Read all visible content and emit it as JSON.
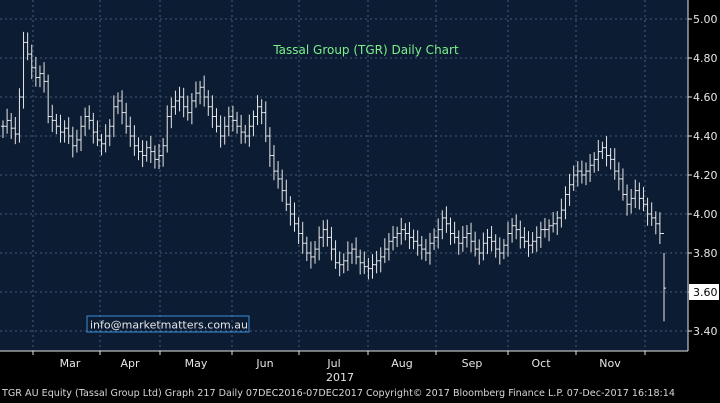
{
  "colors": {
    "background": "#000000",
    "plot_background": "#0b1c33",
    "grid": "#5a6e8a",
    "price_bars": "#e8e8e8",
    "title_text": "#7cf08a",
    "axis_text": "#e6e6e6",
    "last_price_box": "#ffffff",
    "watermark_border": "#3a8fd8"
  },
  "chart_data": {
    "type": "ohlc-bar",
    "title": "Tassal Group (TGR) Daily Chart",
    "watermark": "info@marketmatters.com.au",
    "y_ticks": [
      "5.00",
      "4.80",
      "4.60",
      "4.40",
      "4.20",
      "4.00",
      "3.80",
      "3.60",
      "3.40"
    ],
    "ylim": [
      3.34,
      5.04
    ],
    "x_ticks": [
      "Mar",
      "Apr",
      "May",
      "Jun",
      "Jul",
      "Aug",
      "Sep",
      "Oct",
      "Nov"
    ],
    "x_year_label": "2017",
    "last_price": "3.60",
    "grid": true,
    "series": [
      {
        "values": [
          4.45,
          4.48,
          4.44,
          4.41,
          4.6,
          4.88,
          4.82,
          4.75,
          4.7,
          4.72,
          4.68,
          4.5,
          4.48,
          4.45,
          4.42,
          4.44,
          4.4,
          4.35,
          4.38,
          4.45,
          4.5,
          4.48,
          4.42,
          4.38,
          4.36,
          4.4,
          4.45,
          4.55,
          4.58,
          4.52,
          4.45,
          4.4,
          4.35,
          4.32,
          4.3,
          4.34,
          4.32,
          4.28,
          4.3,
          4.35,
          4.5,
          4.55,
          4.58,
          4.6,
          4.55,
          4.52,
          4.58,
          4.62,
          4.65,
          4.6,
          4.55,
          4.5,
          4.45,
          4.4,
          4.45,
          4.5,
          4.48,
          4.45,
          4.42,
          4.4,
          4.45,
          4.5,
          4.55,
          4.52,
          4.4,
          4.3,
          4.22,
          4.18,
          4.12,
          4.05,
          4.0,
          3.95,
          3.9,
          3.85,
          3.8,
          3.78,
          3.82,
          3.88,
          3.92,
          3.88,
          3.82,
          3.75,
          3.74,
          3.76,
          3.8,
          3.82,
          3.78,
          3.75,
          3.73,
          3.72,
          3.74,
          3.76,
          3.78,
          3.82,
          3.86,
          3.88,
          3.9,
          3.92,
          3.9,
          3.88,
          3.86,
          3.84,
          3.82,
          3.8,
          3.85,
          3.88,
          3.92,
          3.98,
          3.95,
          3.9,
          3.88,
          3.85,
          3.88,
          3.9,
          3.86,
          3.82,
          3.8,
          3.85,
          3.88,
          3.86,
          3.82,
          3.8,
          3.84,
          3.9,
          3.94,
          3.92,
          3.88,
          3.86,
          3.84,
          3.86,
          3.88,
          3.92,
          3.92,
          3.94,
          3.95,
          3.98,
          4.02,
          4.1,
          4.15,
          4.2,
          4.22,
          4.2,
          4.22,
          4.25,
          4.28,
          4.32,
          4.34,
          4.3,
          4.28,
          4.22,
          4.18,
          4.1,
          4.05,
          4.08,
          4.12,
          4.08,
          4.05,
          4.0,
          3.98,
          3.95,
          3.9,
          3.62
        ]
      }
    ]
  },
  "footer": {
    "text": "TGR AU Equity (Tassal Group Ltd) Graph 217  Daily 07DEC2016-07DEC2017 Copyright© 2017 Bloomberg Finance L.P. 07-Dec-2017 16:18:14"
  }
}
